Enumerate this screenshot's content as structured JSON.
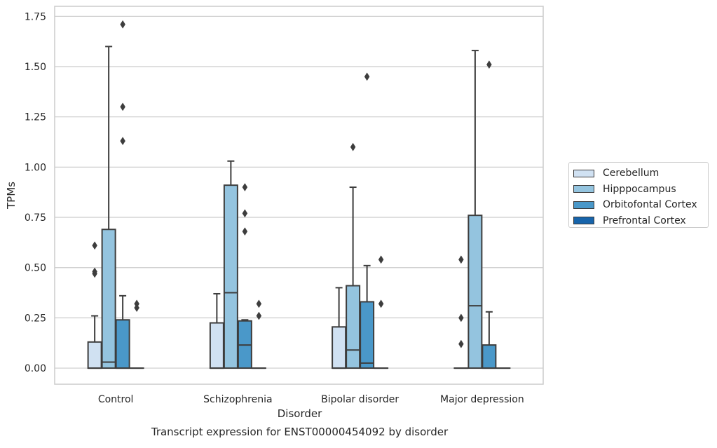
{
  "chart_data": {
    "type": "boxplot",
    "title": "",
    "caption": "Transcript expression for ENST00000454092 by disorder",
    "xlabel": "Disorder",
    "ylabel": "TPMs",
    "ylim": [
      -0.08,
      1.8
    ],
    "yticks": [
      0.0,
      0.25,
      0.5,
      0.75,
      1.0,
      1.25,
      1.5,
      1.75
    ],
    "ytick_labels": [
      "0.00",
      "0.25",
      "0.50",
      "0.75",
      "1.00",
      "1.25",
      "1.50",
      "1.75"
    ],
    "grid": "horizontal",
    "legend_position": "right",
    "categories": [
      "Control",
      "Schizophrenia",
      "Bipolar disorder",
      "Major depression"
    ],
    "series": [
      {
        "name": "Cerebellum",
        "color": "#d0e1f2",
        "boxes": [
          {
            "whislo": 0.0,
            "q1": 0.0,
            "med": 0.0,
            "q3": 0.13,
            "whishi": 0.26,
            "fliers": [
              0.47,
              0.48,
              0.61
            ]
          },
          {
            "whislo": 0.0,
            "q1": 0.0,
            "med": 0.0,
            "q3": 0.225,
            "whishi": 0.37,
            "fliers": []
          },
          {
            "whislo": 0.0,
            "q1": 0.0,
            "med": 0.0,
            "q3": 0.205,
            "whishi": 0.4,
            "fliers": []
          },
          {
            "whislo": 0.0,
            "q1": 0.0,
            "med": 0.0,
            "q3": 0.0,
            "whishi": 0.0,
            "fliers": [
              0.12,
              0.25,
              0.54
            ]
          }
        ]
      },
      {
        "name": "Hipppocampus",
        "color": "#94c4df",
        "boxes": [
          {
            "whislo": 0.0,
            "q1": 0.0,
            "med": 0.03,
            "q3": 0.69,
            "whishi": 1.6,
            "fliers": []
          },
          {
            "whislo": 0.0,
            "q1": 0.0,
            "med": 0.375,
            "q3": 0.91,
            "whishi": 1.03,
            "fliers": []
          },
          {
            "whislo": 0.0,
            "q1": 0.0,
            "med": 0.09,
            "q3": 0.41,
            "whishi": 0.9,
            "fliers": [
              1.1
            ]
          },
          {
            "whislo": 0.0,
            "q1": 0.0,
            "med": 0.31,
            "q3": 0.76,
            "whishi": 1.58,
            "fliers": []
          }
        ]
      },
      {
        "name": "Orbitofontal Cortex",
        "color": "#4a98c9",
        "boxes": [
          {
            "whislo": 0.0,
            "q1": 0.0,
            "med": 0.0,
            "q3": 0.24,
            "whishi": 0.36,
            "fliers": [
              1.13,
              1.3,
              1.71
            ]
          },
          {
            "whislo": 0.0,
            "q1": 0.0,
            "med": 0.115,
            "q3": 0.235,
            "whishi": 0.24,
            "fliers": [
              0.68,
              0.77,
              0.9
            ]
          },
          {
            "whislo": 0.0,
            "q1": 0.0,
            "med": 0.025,
            "q3": 0.33,
            "whishi": 0.51,
            "fliers": [
              1.45
            ]
          },
          {
            "whislo": 0.0,
            "q1": 0.0,
            "med": 0.0,
            "q3": 0.115,
            "whishi": 0.28,
            "fliers": [
              1.51
            ]
          }
        ]
      },
      {
        "name": "Prefrontal Cortex",
        "color": "#1764ab",
        "boxes": [
          {
            "whislo": 0.0,
            "q1": 0.0,
            "med": 0.0,
            "q3": 0.0,
            "whishi": 0.0,
            "fliers": [
              0.3,
              0.32
            ]
          },
          {
            "whislo": 0.0,
            "q1": 0.0,
            "med": 0.0,
            "q3": 0.0,
            "whishi": 0.0,
            "fliers": [
              0.26,
              0.32
            ]
          },
          {
            "whislo": 0.0,
            "q1": 0.0,
            "med": 0.0,
            "q3": 0.0,
            "whishi": 0.0,
            "fliers": [
              0.32,
              0.54
            ]
          },
          {
            "whislo": 0.0,
            "q1": 0.0,
            "med": 0.0,
            "q3": 0.0,
            "whishi": 0.0,
            "fliers": []
          }
        ]
      }
    ]
  }
}
